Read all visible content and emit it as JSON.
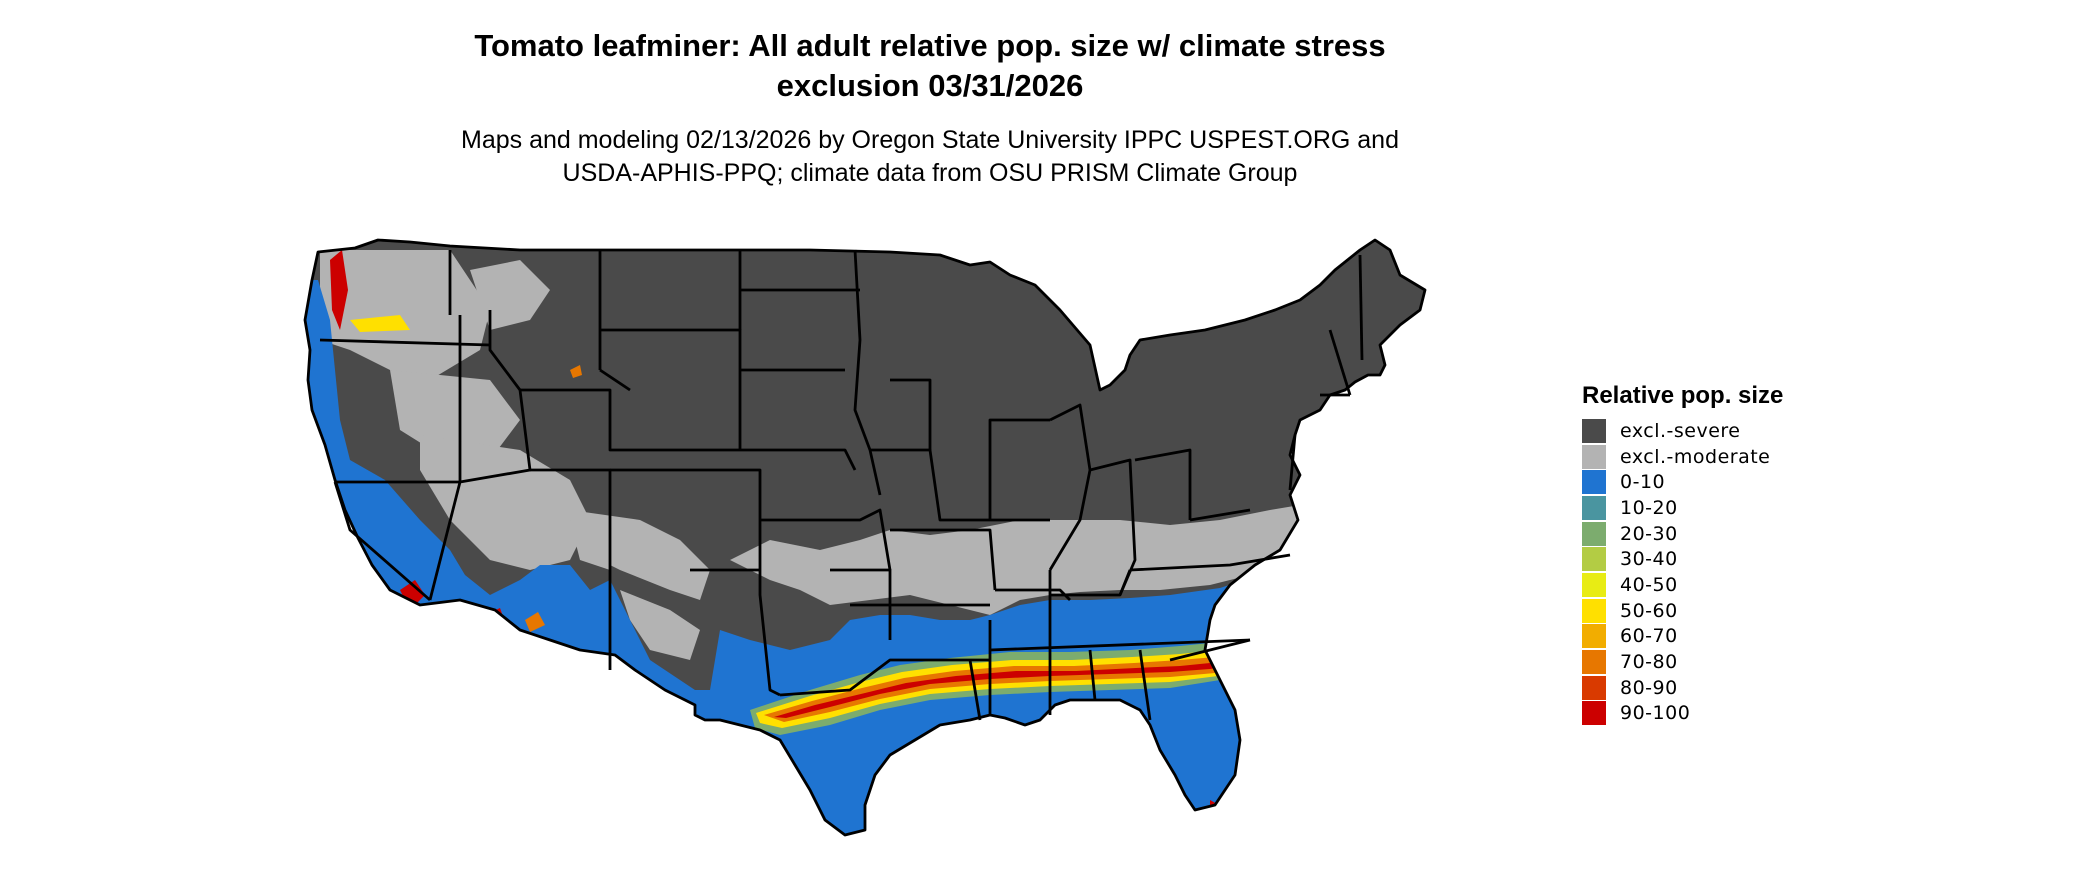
{
  "title": {
    "line1": "Tomato leafminer: All adult relative pop. size w/ climate stress",
    "line2": "exclusion 03/31/2026"
  },
  "subtitle": {
    "line1": "Maps and modeling 02/13/2026 by Oregon State University IPPC USPEST.ORG and",
    "line2": "USDA-APHIS-PPQ; climate data from OSU PRISM Climate Group"
  },
  "legend": {
    "title": "Relative pop. size",
    "items": [
      {
        "label": "excl.-severe",
        "color": "#4a4a4a"
      },
      {
        "label": "excl.-moderate",
        "color": "#b3b3b3"
      },
      {
        "label": "0-10",
        "color": "#1f74d1"
      },
      {
        "label": "10-20",
        "color": "#4a95a0"
      },
      {
        "label": "20-30",
        "color": "#7cac6e"
      },
      {
        "label": "30-40",
        "color": "#b3cc44"
      },
      {
        "label": "40-50",
        "color": "#e8ec14"
      },
      {
        "label": "50-60",
        "color": "#ffe000"
      },
      {
        "label": "60-70",
        "color": "#f2ad00"
      },
      {
        "label": "70-80",
        "color": "#e77700"
      },
      {
        "label": "80-90",
        "color": "#d93a00"
      },
      {
        "label": "90-100",
        "color": "#cc0000"
      }
    ]
  }
}
